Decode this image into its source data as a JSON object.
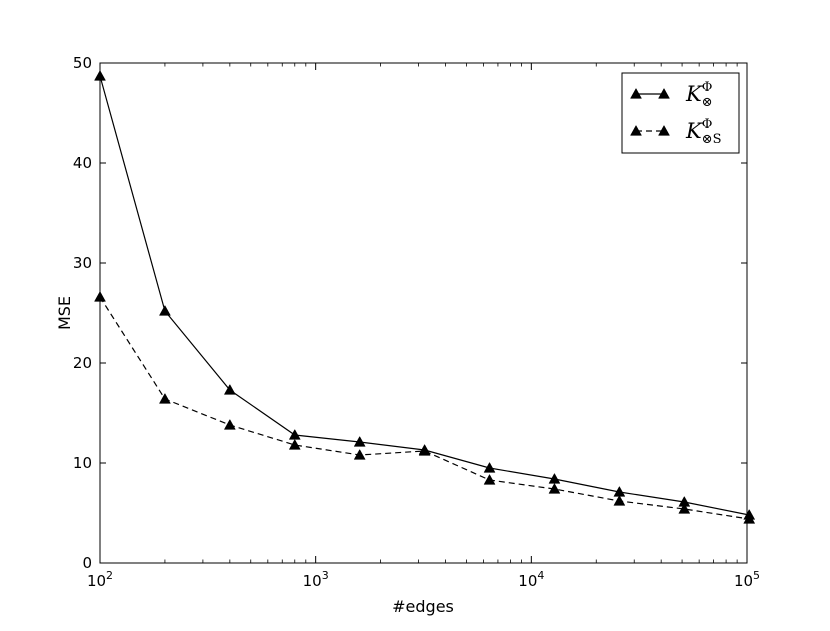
{
  "chart_data": {
    "type": "line",
    "xlabel": "#edges",
    "ylabel": "MSE",
    "xscale": "log",
    "xlim": [
      100,
      100000
    ],
    "ylim": [
      0,
      50
    ],
    "grid": false,
    "legend_position": "top-right",
    "x_ticks": [
      {
        "value": 100,
        "base": "10",
        "exp": "2"
      },
      {
        "value": 1000,
        "base": "10",
        "exp": "3"
      },
      {
        "value": 10000,
        "base": "10",
        "exp": "4"
      },
      {
        "value": 100000,
        "base": "10",
        "exp": "5"
      }
    ],
    "y_ticks": [
      0,
      10,
      20,
      30,
      40,
      50
    ],
    "x": [
      100,
      200,
      400,
      800,
      1600,
      3200,
      6400,
      12800,
      25600,
      51200,
      102400
    ],
    "series": [
      {
        "name": "K⊗Φ",
        "legend": {
          "main": "K",
          "sup": "Φ",
          "sub": "⊗"
        },
        "linestyle": "solid",
        "marker": "triangle",
        "color": "#000000",
        "values": [
          48.7,
          25.2,
          17.3,
          12.8,
          12.1,
          11.3,
          9.5,
          8.4,
          7.1,
          6.1,
          4.8
        ]
      },
      {
        "name": "K⊗SΦ",
        "legend": {
          "main": "K",
          "sup": "Φ",
          "sub": "⊗S"
        },
        "linestyle": "dashed",
        "marker": "triangle",
        "color": "#000000",
        "values": [
          26.6,
          16.4,
          13.8,
          11.8,
          10.8,
          11.2,
          8.3,
          7.4,
          6.2,
          5.4,
          4.4
        ]
      }
    ]
  }
}
